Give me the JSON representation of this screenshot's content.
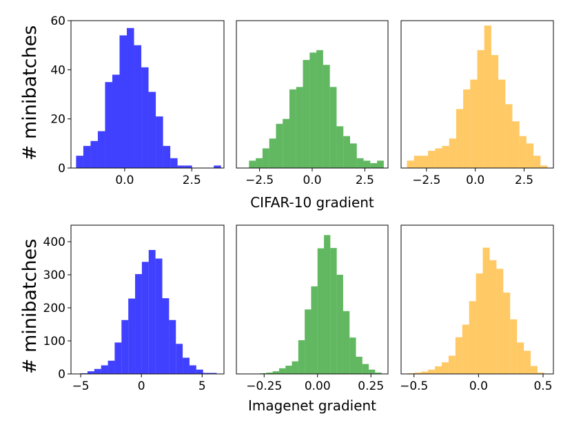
{
  "figure": {
    "row_ylabel": "# minibatches"
  },
  "chart_data": [
    {
      "type": "bar",
      "id": "cifar-sgd",
      "color": "#0000ff",
      "title": "",
      "xlabel": "",
      "ylabel": "# minibatches",
      "xlim": [
        -2.0,
        3.7
      ],
      "ylim": [
        0,
        60
      ],
      "xticks": [
        {
          "value": 0.0,
          "label": "0.0"
        },
        {
          "value": 2.5,
          "label": "2.5"
        }
      ],
      "yticks": [
        {
          "value": 0,
          "label": "0"
        },
        {
          "value": 20,
          "label": "20"
        },
        {
          "value": 40,
          "label": "40"
        },
        {
          "value": 60,
          "label": "60"
        }
      ],
      "bin_edges": [
        -1.81,
        -1.54,
        -1.27,
        -1.0,
        -0.73,
        -0.46,
        -0.19,
        0.08,
        0.35,
        0.62,
        0.89,
        1.16,
        1.43,
        1.7,
        1.97,
        2.24,
        2.51,
        2.78,
        3.05,
        3.32,
        3.59
      ],
      "values": [
        5,
        9,
        11,
        15,
        35,
        38,
        54,
        57,
        50,
        41,
        31,
        21,
        9,
        4,
        1,
        1,
        0,
        0,
        0,
        1
      ]
    },
    {
      "type": "bar",
      "id": "cifar-mid",
      "color": "#2ca02c",
      "title": "",
      "xlabel": "",
      "ylabel": "",
      "xlim": [
        -3.6,
        3.6
      ],
      "ylim": [
        0,
        60
      ],
      "xticks": [
        {
          "value": -2.5,
          "label": "−2.5"
        },
        {
          "value": 0.0,
          "label": "0.0"
        },
        {
          "value": 2.5,
          "label": "2.5"
        }
      ],
      "yticks": [],
      "bin_edges": [
        -3.0,
        -2.68,
        -2.36,
        -2.04,
        -1.72,
        -1.4,
        -1.08,
        -0.76,
        -0.44,
        -0.12,
        0.2,
        0.52,
        0.84,
        1.16,
        1.48,
        1.8,
        2.12,
        2.44,
        2.76,
        3.08,
        3.4
      ],
      "values": [
        3,
        4,
        8,
        12,
        18,
        20,
        32,
        33,
        44,
        47,
        48,
        42,
        33,
        17,
        13,
        10,
        4,
        3,
        2,
        3
      ]
    },
    {
      "type": "bar",
      "id": "cifar-right",
      "color": "#ffb732",
      "title": "",
      "xlabel": "",
      "ylabel": "",
      "xlim": [
        -3.8,
        4.0
      ],
      "ylim": [
        0,
        60
      ],
      "xticks": [
        {
          "value": -2.5,
          "label": "−2.5"
        },
        {
          "value": 0.0,
          "label": "0.0"
        },
        {
          "value": 2.5,
          "label": "2.5"
        }
      ],
      "yticks": [],
      "bin_edges": [
        -3.5,
        -3.14,
        -2.78,
        -2.42,
        -2.06,
        -1.7,
        -1.34,
        -0.98,
        -0.62,
        -0.26,
        0.1,
        0.46,
        0.82,
        1.18,
        1.54,
        1.9,
        2.26,
        2.62,
        2.98,
        3.34,
        3.7
      ],
      "values": [
        3,
        5,
        5,
        7,
        8,
        9,
        12,
        24,
        32,
        36,
        48,
        58,
        46,
        36,
        26,
        19,
        13,
        10,
        5,
        1
      ]
    },
    {
      "type": "bar",
      "id": "imagenet-sgd",
      "color": "#0000ff",
      "title": "",
      "xlabel": "",
      "ylabel": "# minibatches",
      "xlim": [
        -5.8,
        6.8
      ],
      "ylim": [
        0,
        450
      ],
      "xticks": [
        {
          "value": -5,
          "label": "−5"
        },
        {
          "value": 0,
          "label": "0"
        },
        {
          "value": 5,
          "label": "5"
        }
      ],
      "yticks": [
        {
          "value": 0,
          "label": "0"
        },
        {
          "value": 100,
          "label": "100"
        },
        {
          "value": 200,
          "label": "200"
        },
        {
          "value": 300,
          "label": "300"
        },
        {
          "value": 400,
          "label": "400"
        }
      ],
      "bin_edges": [
        -5.0,
        -4.44,
        -3.88,
        -3.32,
        -2.76,
        -2.2,
        -1.64,
        -1.08,
        -0.52,
        0.04,
        0.6,
        1.16,
        1.72,
        2.28,
        2.84,
        3.4,
        3.96,
        4.52,
        5.08,
        5.64,
        6.2
      ],
      "values": [
        2,
        8,
        15,
        26,
        40,
        95,
        163,
        228,
        302,
        339,
        375,
        349,
        229,
        163,
        91,
        49,
        26,
        13,
        3,
        3
      ]
    },
    {
      "type": "bar",
      "id": "imagenet-mid",
      "color": "#2ca02c",
      "title": "",
      "xlabel": "",
      "ylabel": "",
      "xlim": [
        -0.38,
        0.33
      ],
      "ylim": [
        0,
        450
      ],
      "xticks": [
        {
          "value": -0.25,
          "label": "−0.25"
        },
        {
          "value": 0.0,
          "label": "0.00"
        },
        {
          "value": 0.25,
          "label": "0.25"
        }
      ],
      "yticks": [],
      "bin_edges": [
        -0.3,
        -0.27,
        -0.24,
        -0.21,
        -0.18,
        -0.15,
        -0.12,
        -0.09,
        -0.06,
        -0.03,
        0.0,
        0.03,
        0.06,
        0.09,
        0.12,
        0.15,
        0.18,
        0.21,
        0.24,
        0.27,
        0.3
      ],
      "values": [
        1,
        2,
        4,
        8,
        17,
        25,
        38,
        102,
        195,
        265,
        380,
        420,
        381,
        300,
        190,
        110,
        52,
        30,
        13,
        4
      ]
    },
    {
      "type": "bar",
      "id": "imagenet-right",
      "color": "#ffb732",
      "title": "",
      "xlabel": "",
      "ylabel": "",
      "xlim": [
        -0.6,
        0.58
      ],
      "ylim": [
        0,
        450
      ],
      "xticks": [
        {
          "value": -0.5,
          "label": "−0.5"
        },
        {
          "value": 0.0,
          "label": "0.0"
        },
        {
          "value": 0.5,
          "label": "0.5"
        }
      ],
      "yticks": [],
      "bin_edges": [
        -0.55,
        -0.497,
        -0.444,
        -0.391,
        -0.338,
        -0.285,
        -0.232,
        -0.179,
        -0.126,
        -0.073,
        -0.02,
        0.033,
        0.086,
        0.139,
        0.192,
        0.245,
        0.298,
        0.351,
        0.404,
        0.457,
        0.51
      ],
      "values": [
        2,
        4,
        7,
        13,
        23,
        35,
        55,
        111,
        149,
        220,
        304,
        382,
        344,
        318,
        246,
        165,
        95,
        70,
        24,
        4
      ]
    }
  ],
  "row_xlabels": [
    "CIFAR-10 gradient",
    "Imagenet gradient"
  ]
}
